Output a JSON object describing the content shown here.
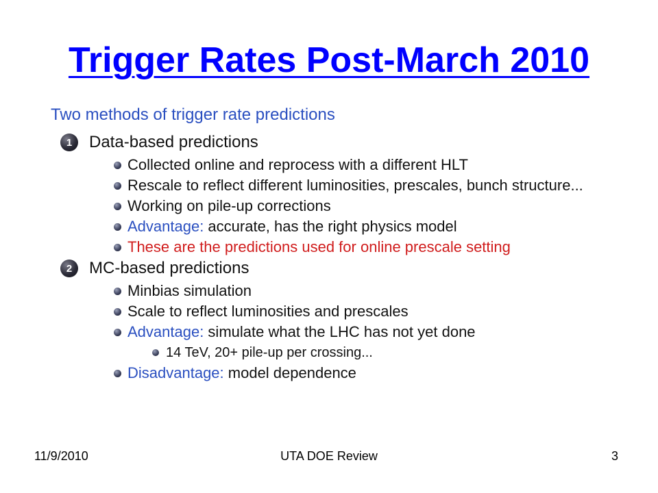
{
  "slide": {
    "title": "Trigger Rates Post-March 2010",
    "heading": "Two methods of trigger rate predictions",
    "sections": [
      {
        "number": "1",
        "title": "Data-based predictions",
        "bullets": [
          {
            "text": "Collected online and reprocess with a different HLT"
          },
          {
            "text": "Rescale to reflect different luminosities, prescales, bunch structure..."
          },
          {
            "text": "Working on pile-up corrections"
          },
          {
            "label": "Advantage:",
            "text": " accurate, has the right physics model"
          },
          {
            "text": "These are the predictions used for online prescale setting"
          }
        ]
      },
      {
        "number": "2",
        "title": "MC-based predictions",
        "bullets": [
          {
            "text": "Minbias simulation"
          },
          {
            "text": "Scale to reflect luminosities and prescales"
          },
          {
            "label": "Advantage:",
            "text": " simulate what the LHC has not yet done",
            "sub": "14 TeV, 20+ pile-up per crossing..."
          },
          {
            "label": "Disadvantage:",
            "text": " model dependence"
          }
        ]
      }
    ],
    "colors": {
      "title": "#0000ff",
      "heading": "#2a4fc0",
      "highlight": "#d01c1c"
    }
  },
  "footer": {
    "date": "11/9/2010",
    "center": "UTA DOE Review",
    "page": "3"
  }
}
